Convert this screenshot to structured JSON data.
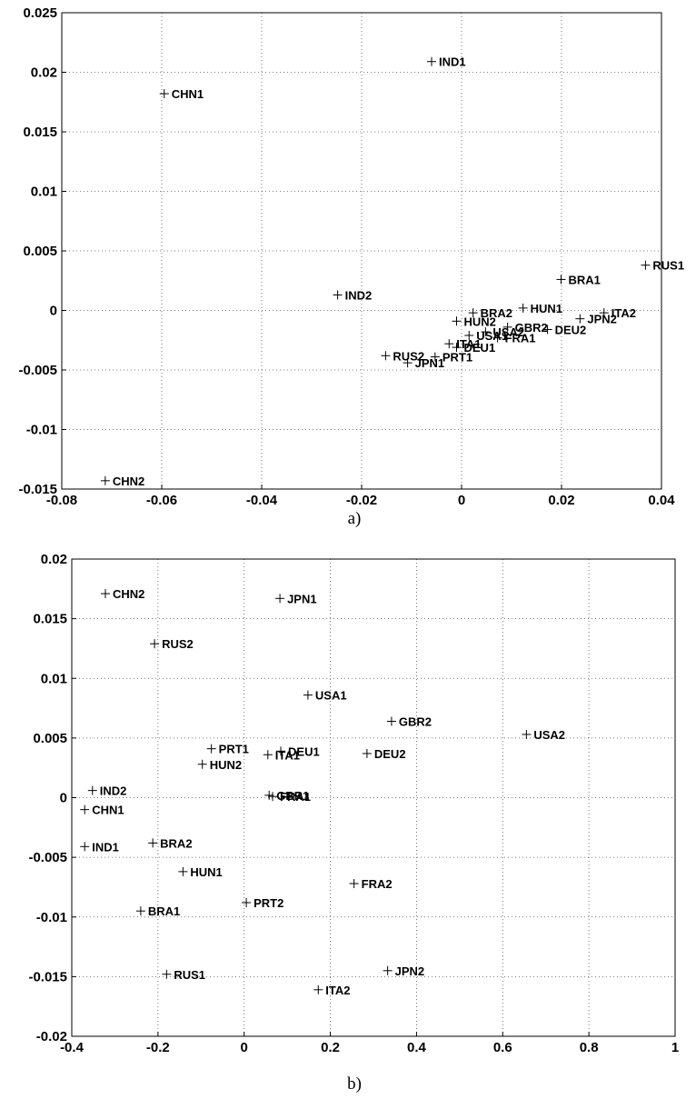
{
  "chart_data": [
    {
      "type": "scatter",
      "caption": "a)",
      "xlim": [
        -0.08,
        0.04
      ],
      "ylim": [
        -0.015,
        0.025
      ],
      "x_ticks": [
        "-0.08",
        "-0.06",
        "-0.04",
        "-0.02",
        "0",
        "0.02",
        "0.04"
      ],
      "y_ticks": [
        "0.025",
        "0.02",
        "0.015",
        "0.01",
        "0.005",
        "0",
        "-0.005",
        "-0.01",
        "-0.015"
      ],
      "grid": true,
      "points": [
        {
          "label": "IND1",
          "x": -0.006,
          "y": 0.0209
        },
        {
          "label": "CHN1",
          "x": -0.0595,
          "y": 0.0182
        },
        {
          "label": "RUS1",
          "x": 0.0368,
          "y": 0.0038
        },
        {
          "label": "BRA1",
          "x": 0.0199,
          "y": 0.0026
        },
        {
          "label": "IND2",
          "x": -0.0248,
          "y": 0.0013
        },
        {
          "label": "HUN1",
          "x": 0.0123,
          "y": 0.0002
        },
        {
          "label": "BRA2",
          "x": 0.0023,
          "y": -0.0002
        },
        {
          "label": "ITA2",
          "x": 0.0285,
          "y": -0.0002
        },
        {
          "label": "JPN2",
          "x": 0.0237,
          "y": -0.0007
        },
        {
          "label": "HUN2",
          "x": -0.001,
          "y": -0.0009
        },
        {
          "label": "GBR2",
          "x": 0.0092,
          "y": -0.0014
        },
        {
          "label": "DEU2",
          "x": 0.0172,
          "y": -0.0016
        },
        {
          "label": "USA2",
          "x": 0.0048,
          "y": -0.0018
        },
        {
          "label": "USA1",
          "x": 0.0015,
          "y": -0.0021
        },
        {
          "label": "FRA1",
          "x": 0.0072,
          "y": -0.0023
        },
        {
          "label": "ITA1",
          "x": -0.0025,
          "y": -0.0028
        },
        {
          "label": "DEU1",
          "x": -0.001,
          "y": -0.0031
        },
        {
          "label": "RUS2",
          "x": -0.0152,
          "y": -0.0038
        },
        {
          "label": "PRT1",
          "x": -0.0053,
          "y": -0.0039
        },
        {
          "label": "JPN1",
          "x": -0.0108,
          "y": -0.0044
        },
        {
          "label": "CHN2",
          "x": -0.0713,
          "y": -0.0143
        }
      ]
    },
    {
      "type": "scatter",
      "caption": "b)",
      "xlim": [
        -0.4,
        1
      ],
      "ylim": [
        -0.02,
        0.02
      ],
      "x_ticks": [
        "-0.4",
        "-0.2",
        "0",
        "0.2",
        "0.4",
        "0.6",
        "0.8",
        "1"
      ],
      "y_ticks": [
        "0.02",
        "0.015",
        "0.01",
        "0.005",
        "0",
        "-0.005",
        "-0.01",
        "-0.015",
        "-0.02"
      ],
      "grid": true,
      "points": [
        {
          "label": "CHN2",
          "x": -0.322,
          "y": 0.0171
        },
        {
          "label": "JPN1",
          "x": 0.083,
          "y": 0.0167
        },
        {
          "label": "RUS2",
          "x": -0.208,
          "y": 0.0129
        },
        {
          "label": "USA1",
          "x": 0.148,
          "y": 0.0086
        },
        {
          "label": "GBR2",
          "x": 0.342,
          "y": 0.0064
        },
        {
          "label": "USA2",
          "x": 0.655,
          "y": 0.0053
        },
        {
          "label": "PRT1",
          "x": -0.076,
          "y": 0.0041
        },
        {
          "label": "DEU1",
          "x": 0.085,
          "y": 0.0039
        },
        {
          "label": "DEU2",
          "x": 0.285,
          "y": 0.0037
        },
        {
          "label": "ITA1",
          "x": 0.055,
          "y": 0.0036
        },
        {
          "label": "HUN2",
          "x": -0.097,
          "y": 0.0028
        },
        {
          "label": "IND2",
          "x": -0.352,
          "y": 0.0006
        },
        {
          "label": "GBR1",
          "x": 0.058,
          "y": 0.0002
        },
        {
          "label": "FRA1",
          "x": 0.066,
          "y": 0.0001
        },
        {
          "label": "CHN1",
          "x": -0.37,
          "y": -0.001
        },
        {
          "label": "BRA2",
          "x": -0.212,
          "y": -0.0038
        },
        {
          "label": "IND1",
          "x": -0.37,
          "y": -0.0041
        },
        {
          "label": "HUN1",
          "x": -0.142,
          "y": -0.0062
        },
        {
          "label": "FRA2",
          "x": 0.255,
          "y": -0.0072
        },
        {
          "label": "PRT2",
          "x": 0.005,
          "y": -0.0088
        },
        {
          "label": "BRA1",
          "x": -0.24,
          "y": -0.0095
        },
        {
          "label": "JPN2",
          "x": 0.333,
          "y": -0.0145
        },
        {
          "label": "RUS1",
          "x": -0.18,
          "y": -0.0148
        },
        {
          "label": "ITA2",
          "x": 0.172,
          "y": -0.0161
        }
      ]
    }
  ]
}
